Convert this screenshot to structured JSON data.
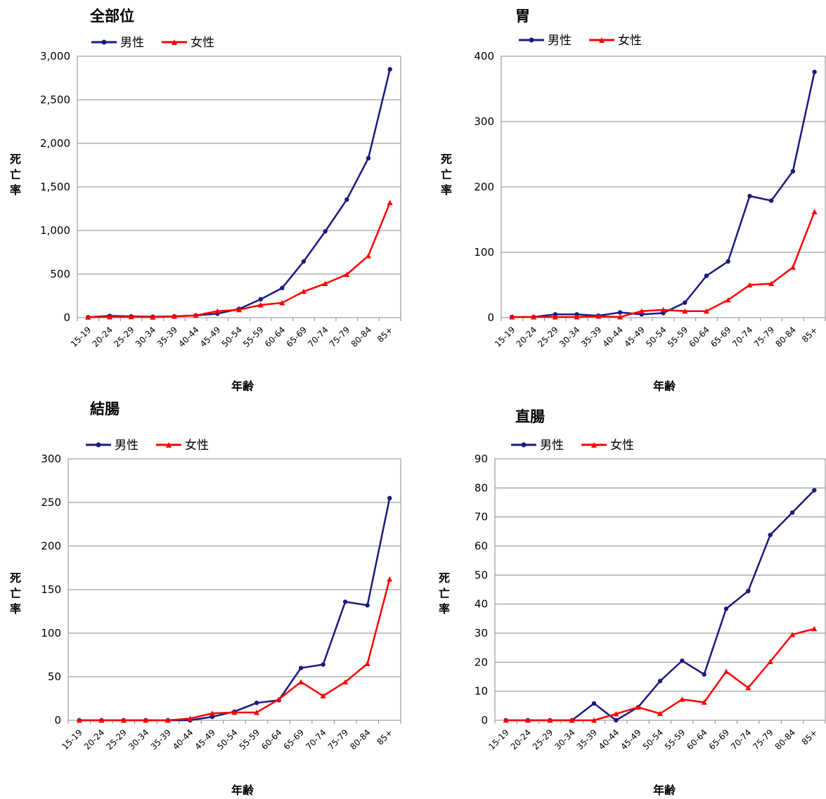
{
  "chart_data": [
    {
      "type": "line",
      "title": "全部位",
      "xlabel": "年齢",
      "ylabel": "死亡率",
      "categories": [
        "15-19",
        "20-24",
        "25-29",
        "30-34",
        "35-39",
        "40-44",
        "45-49",
        "50-54",
        "55-59",
        "60-64",
        "65-69",
        "70-74",
        "75-79",
        "80-84",
        "85+"
      ],
      "ylim": [
        0,
        3000
      ],
      "yticks": [
        0,
        500,
        1000,
        1500,
        2000,
        2500,
        3000
      ],
      "ytick_labels": [
        "0",
        "500",
        "1,000",
        "1,500",
        "2,000",
        "2,500",
        "3,000"
      ],
      "grid": true,
      "legend": "top",
      "series": [
        {
          "name": "男性",
          "color": "#1a1a80",
          "marker": "circle",
          "values": [
            5,
            20,
            15,
            10,
            15,
            25,
            45,
            100,
            210,
            340,
            645,
            990,
            1355,
            1830,
            2850
          ]
        },
        {
          "name": "女性",
          "color": "#ff0000",
          "marker": "triangle",
          "values": [
            5,
            8,
            10,
            5,
            15,
            25,
            75,
            90,
            145,
            170,
            300,
            390,
            495,
            710,
            1320
          ]
        }
      ]
    },
    {
      "type": "line",
      "title": "胃",
      "xlabel": "年齢",
      "ylabel": "死亡率",
      "categories": [
        "15-19",
        "20-24",
        "25-29",
        "30-34",
        "35-39",
        "40-44",
        "45-49",
        "50-54",
        "55-59",
        "60-64",
        "65-69",
        "70-74",
        "75-79",
        "80-84",
        "85+"
      ],
      "ylim": [
        0,
        400
      ],
      "yticks": [
        0,
        100,
        200,
        300,
        400
      ],
      "ytick_labels": [
        "0",
        "100",
        "200",
        "300",
        "400"
      ],
      "grid": true,
      "legend": "top",
      "series": [
        {
          "name": "男性",
          "color": "#1a1a80",
          "marker": "circle",
          "values": [
            1,
            1,
            5,
            5,
            3,
            8,
            5,
            7,
            23,
            64,
            86,
            186,
            179,
            224,
            376
          ]
        },
        {
          "name": "女性",
          "color": "#ff0000",
          "marker": "triangle",
          "values": [
            1,
            1,
            1,
            1,
            2,
            1,
            10,
            12,
            10,
            10,
            27,
            50,
            52,
            77,
            162
          ]
        }
      ]
    },
    {
      "type": "line",
      "title": "結腸",
      "xlabel": "年齢",
      "ylabel": "死亡率",
      "categories": [
        "15-19",
        "20-24",
        "25-29",
        "30-34",
        "35-39",
        "40-44",
        "45-49",
        "50-54",
        "55-59",
        "60-64",
        "65-69",
        "70-74",
        "75-79",
        "80-84",
        "85+"
      ],
      "ylim": [
        0,
        300
      ],
      "yticks": [
        0,
        50,
        100,
        150,
        200,
        250,
        300
      ],
      "ytick_labels": [
        "0",
        "50",
        "100",
        "150",
        "200",
        "250",
        "300"
      ],
      "grid": true,
      "legend": "top",
      "series": [
        {
          "name": "男性",
          "color": "#1a1a80",
          "marker": "circle",
          "values": [
            0,
            0,
            0,
            0,
            0,
            0,
            4,
            10,
            20,
            23,
            60,
            64,
            136,
            132,
            255
          ]
        },
        {
          "name": "女性",
          "color": "#ff0000",
          "marker": "triangle",
          "values": [
            0,
            0,
            0,
            0,
            0,
            2,
            8,
            9,
            9,
            24,
            44,
            28,
            44,
            65,
            162
          ]
        }
      ]
    },
    {
      "type": "line",
      "title": "直腸",
      "xlabel": "年齢",
      "ylabel": "死亡率",
      "categories": [
        "15-19",
        "20-24",
        "25-29",
        "30-34",
        "35-39",
        "40-44",
        "45-49",
        "50-54",
        "55-59",
        "60-64",
        "65-69",
        "70-74",
        "75-79",
        "80-84",
        "85+"
      ],
      "ylim": [
        0,
        90
      ],
      "yticks": [
        0,
        10,
        20,
        30,
        40,
        50,
        60,
        70,
        80,
        90
      ],
      "ytick_labels": [
        "0",
        "10",
        "20",
        "30",
        "40",
        "50",
        "60",
        "70",
        "80",
        "90"
      ],
      "grid": true,
      "legend": "top",
      "series": [
        {
          "name": "男性",
          "color": "#1a1a80",
          "marker": "circle",
          "values": [
            0,
            0,
            0,
            0,
            5.8,
            0,
            4.5,
            13.5,
            20.5,
            15.8,
            38.4,
            44.5,
            63.8,
            71.5,
            79.2
          ]
        },
        {
          "name": "女性",
          "color": "#ff0000",
          "marker": "triangle",
          "values": [
            0,
            0,
            0,
            0,
            0,
            2.2,
            4.5,
            2.3,
            7.2,
            6.2,
            16.8,
            11.2,
            20.2,
            29.5,
            31.5
          ]
        }
      ]
    }
  ]
}
